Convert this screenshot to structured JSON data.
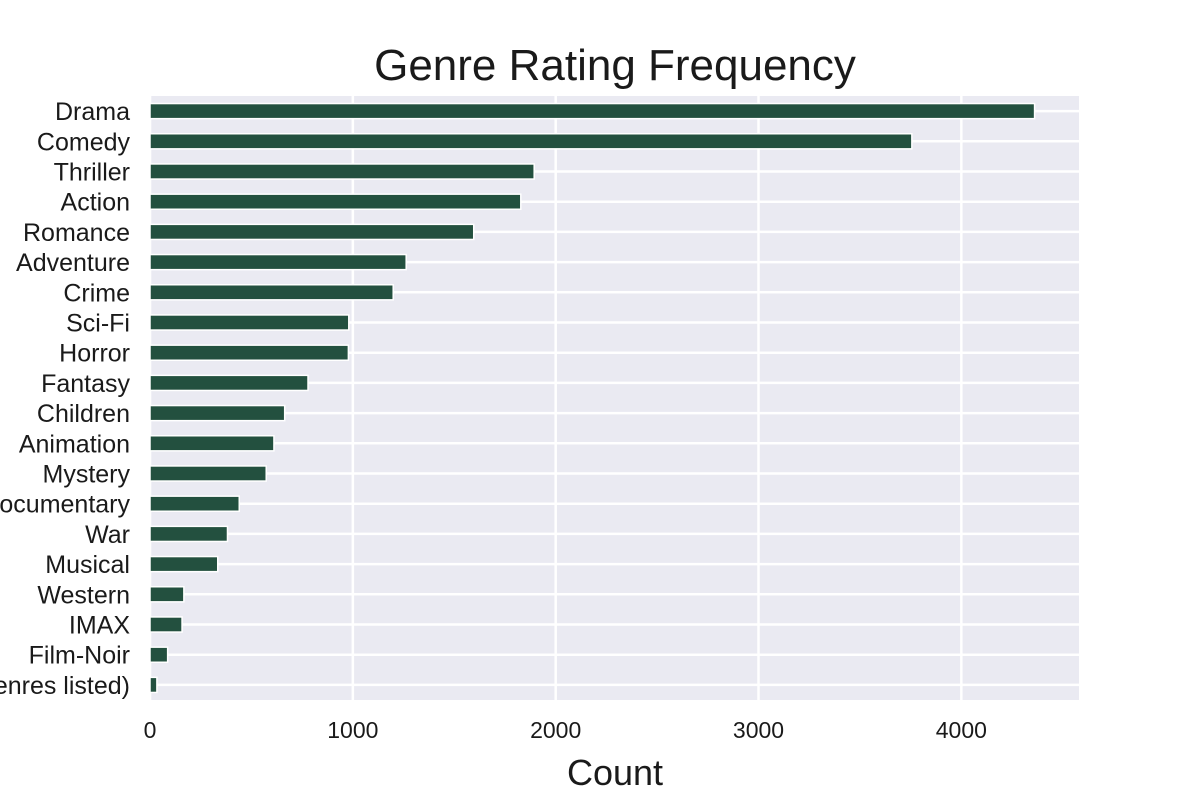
{
  "chart_data": {
    "type": "bar",
    "orientation": "horizontal",
    "title": "Genre Rating Frequency",
    "xlabel": "Count",
    "ylabel": "",
    "xlim": [
      0,
      4580
    ],
    "xticks": [
      0,
      1000,
      2000,
      3000,
      4000
    ],
    "grid": true,
    "bar_color": "#23503f",
    "plot_bg": "#eaeaf2",
    "categories": [
      "Drama",
      "Comedy",
      "Thriller",
      "Action",
      "Romance",
      "Adventure",
      "Crime",
      "Sci-Fi",
      "Horror",
      "Fantasy",
      "Children",
      "Animation",
      "Mystery",
      "Documentary",
      "War",
      "Musical",
      "Western",
      "IMAX",
      "Film-Noir",
      "(no genres listed)"
    ],
    "values": [
      4361,
      3756,
      1894,
      1828,
      1596,
      1263,
      1199,
      980,
      978,
      779,
      664,
      611,
      573,
      440,
      382,
      334,
      167,
      158,
      87,
      34
    ]
  }
}
